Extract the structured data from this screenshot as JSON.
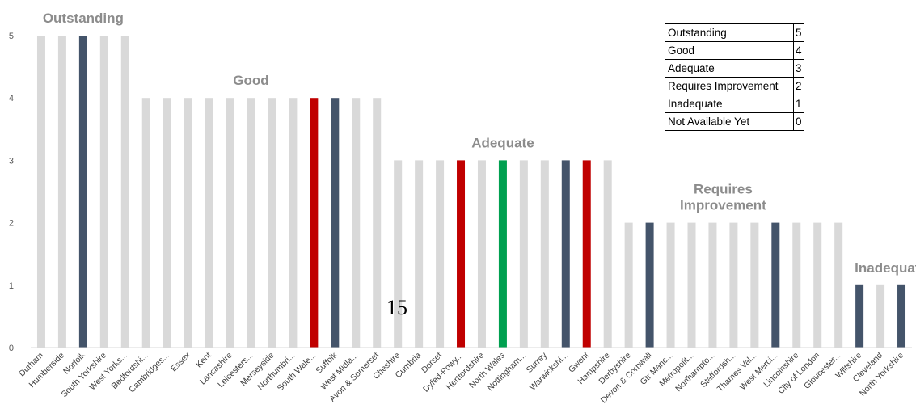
{
  "chart_data": {
    "type": "bar",
    "ylim": [
      0,
      5
    ],
    "yticks": [
      "0",
      "1",
      "2",
      "3",
      "4",
      "5"
    ],
    "categories": [
      "Durham",
      "Humberside",
      "Norfolk",
      "South Yorkshire",
      "West Yorks...",
      "Bedfordshi...",
      "Cambridges...",
      "Essex",
      "Kent",
      "Lancashire",
      "Leicesters...",
      "Merseyside",
      "Northumbri...",
      "South Wale...",
      "Suffolk",
      "West Midla...",
      "Avon & Somerset",
      "Cheshire",
      "Cumbria",
      "Dorset",
      "Dyfed-Powy...",
      "Hertfordshire",
      "North Wales",
      "Nottingham...",
      "Surrey",
      "Warwickshi...",
      "Gwent",
      "Hampshire",
      "Derbyshire",
      "Devon & Cornwall",
      "Gtr Manc...",
      "Metropolit...",
      "Northampto...",
      "Staffordsh...",
      "Thames Val...",
      "West Merci...",
      "Lincolnshire",
      "City of London",
      "Gloucester...",
      "Wiltshire",
      "Cleveland",
      "North Yorkshire"
    ],
    "values": [
      5,
      5,
      5,
      5,
      5,
      4,
      4,
      4,
      4,
      4,
      4,
      4,
      4,
      4,
      4,
      4,
      4,
      3,
      3,
      3,
      3,
      3,
      3,
      3,
      3,
      3,
      3,
      3,
      2,
      2,
      2,
      2,
      2,
      2,
      2,
      2,
      2,
      2,
      2,
      1,
      1,
      1
    ],
    "bar_colors": [
      "#d9d9d9",
      "#d9d9d9",
      "#44546a",
      "#d9d9d9",
      "#d9d9d9",
      "#d9d9d9",
      "#d9d9d9",
      "#d9d9d9",
      "#d9d9d9",
      "#d9d9d9",
      "#d9d9d9",
      "#d9d9d9",
      "#d9d9d9",
      "#c00000",
      "#44546a",
      "#d9d9d9",
      "#d9d9d9",
      "#d9d9d9",
      "#d9d9d9",
      "#d9d9d9",
      "#c00000",
      "#d9d9d9",
      "#00a050",
      "#d9d9d9",
      "#d9d9d9",
      "#44546a",
      "#c00000",
      "#d9d9d9",
      "#d9d9d9",
      "#44546a",
      "#d9d9d9",
      "#d9d9d9",
      "#d9d9d9",
      "#d9d9d9",
      "#d9d9d9",
      "#44546a",
      "#d9d9d9",
      "#d9d9d9",
      "#d9d9d9",
      "#44546a",
      "#d9d9d9",
      "#44546a"
    ],
    "group_labels": [
      {
        "lines": [
          "Outstanding"
        ],
        "category_index": 2,
        "level": 5
      },
      {
        "lines": [
          "Good"
        ],
        "category_index": 10,
        "level": 4
      },
      {
        "lines": [
          "Adequate"
        ],
        "category_index": 22,
        "level": 3
      },
      {
        "lines": [
          "Requires",
          "Improvement"
        ],
        "category_index": 32.5,
        "level": 2
      },
      {
        "lines": [
          "Inadequate"
        ],
        "category_index": 40.5,
        "level": 1
      }
    ],
    "legend": [
      {
        "label": "Outstanding",
        "value": "5"
      },
      {
        "label": "Good",
        "value": "4"
      },
      {
        "label": "Adequate",
        "value": "3"
      },
      {
        "label": "Requires Improvement",
        "value": "2"
      },
      {
        "label": "Inadequate",
        "value": "1"
      },
      {
        "label": "Not Available Yet",
        "value": "0"
      }
    ],
    "grid": false,
    "legend_position": "top-right"
  },
  "page_number": "15",
  "colors": {
    "default_bar": "#d9d9d9",
    "highlight_navy": "#44546a",
    "highlight_red": "#c00000",
    "highlight_green": "#00a050",
    "group_label": "#8c8c8c"
  }
}
